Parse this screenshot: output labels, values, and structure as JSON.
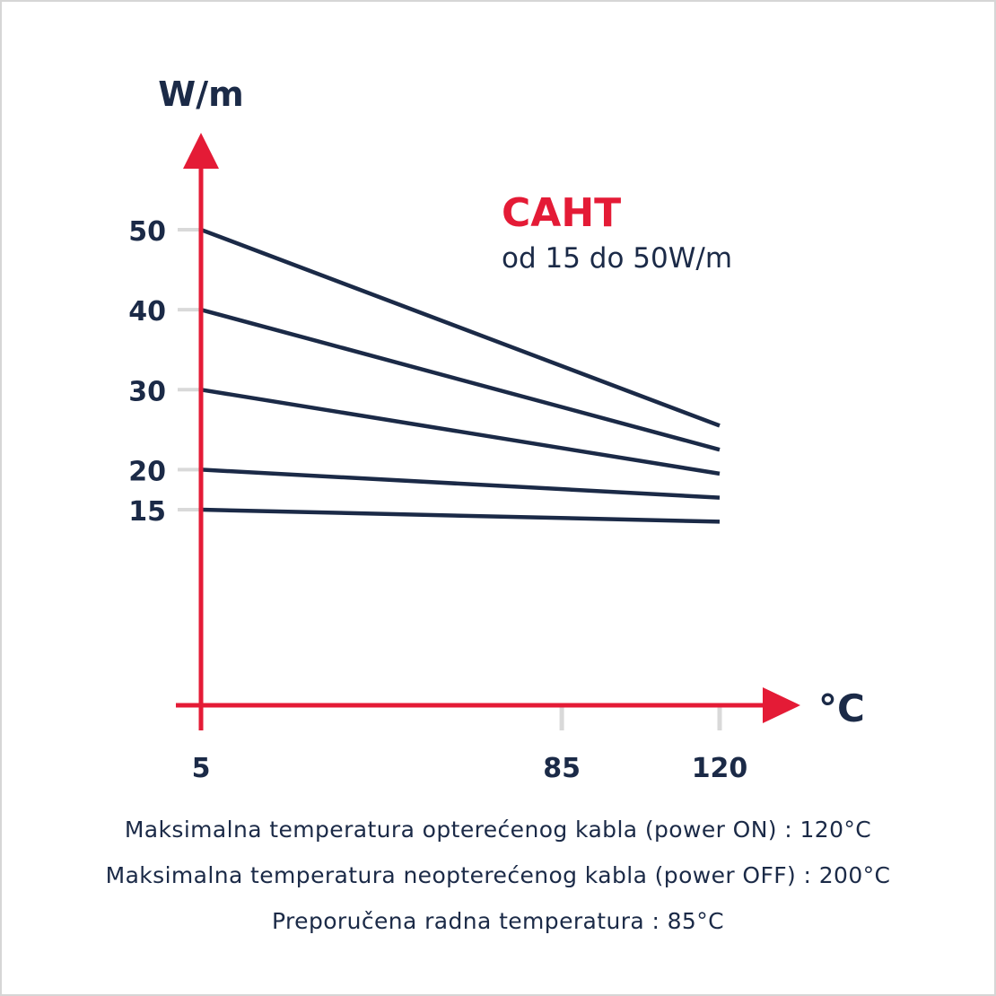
{
  "chart_data": {
    "type": "line",
    "title": "CAHT",
    "subtitle": "od 15 do 50W/m",
    "ylabel": "W/m",
    "xlabel": "°C",
    "x": [
      5,
      120
    ],
    "xticks": [
      5,
      85,
      120
    ],
    "yticks": [
      15,
      20,
      30,
      40,
      50
    ],
    "series": [
      {
        "values": [
          50,
          25.5
        ]
      },
      {
        "values": [
          40,
          22.5
        ]
      },
      {
        "values": [
          30,
          19.5
        ]
      },
      {
        "values": [
          20,
          16.5
        ]
      },
      {
        "values": [
          15,
          13.5
        ]
      }
    ],
    "colors": {
      "axis": "#e41b36",
      "series": "#1b2a47",
      "title": "#e41b36",
      "text": "#1b2a47",
      "tick": "#d9d9d9"
    }
  },
  "notes": [
    "Maksimalna temperatura opterećenog kabla (power ON) : 120°C",
    "Maksimalna temperatura neopterećenog kabla (power OFF) : 200°C",
    "Preporučena radna temperatura : 85°C"
  ]
}
